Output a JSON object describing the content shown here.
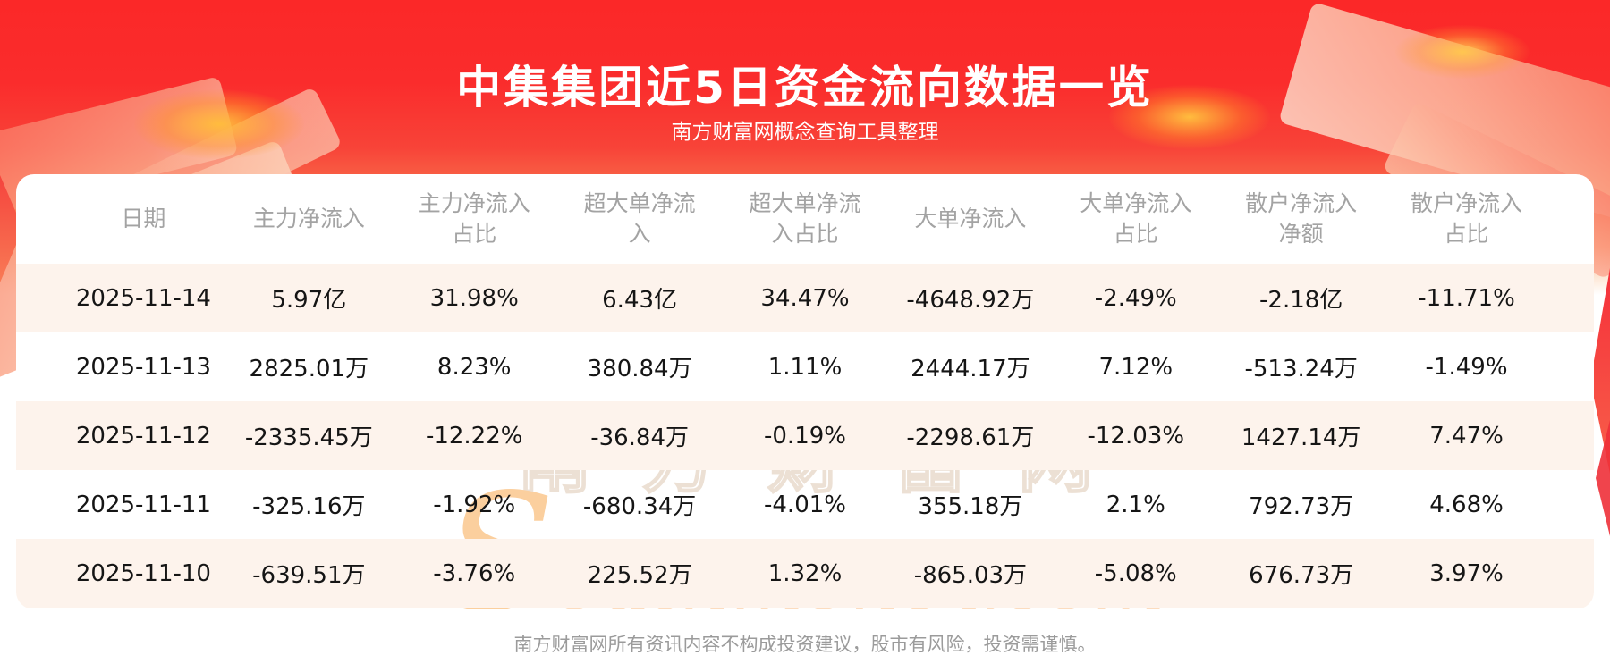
{
  "header": {
    "title": "中集集团近5日资金流向数据一览",
    "subtitle": "南方财富网概念查询工具整理"
  },
  "watermark": {
    "cn": "南方财富网",
    "en": "Southmoney.com"
  },
  "footer": {
    "disclaimer": "南方财富网所有资讯内容不构成投资建议，股市有风险，投资需谨慎。"
  },
  "colors": {
    "banner_red": "#fb2828",
    "banner_fade": "#fbaf82",
    "row_alt_bg": "#fdf3ec",
    "header_text": "#a3a3a3",
    "data_text": "#151515",
    "title_text": "#ffffff",
    "footer_text": "#9b9b9b",
    "gold_glow": "#ffbc3e"
  },
  "chart_data": {
    "type": "table",
    "title": "中集集团近5日资金流向数据一览",
    "columns": [
      "日期",
      "主力净流入",
      "主力净流入占比",
      "超大单净流入",
      "超大单净流入占比",
      "大单净流入",
      "大单净流入占比",
      "散户净流入净额",
      "散户净流入占比"
    ],
    "rows": [
      [
        "2025-11-14",
        "5.97亿",
        "31.98%",
        "6.43亿",
        "34.47%",
        "-4648.92万",
        "-2.49%",
        "-2.18亿",
        "-11.71%"
      ],
      [
        "2025-11-13",
        "2825.01万",
        "8.23%",
        "380.84万",
        "1.11%",
        "2444.17万",
        "7.12%",
        "-513.24万",
        "-1.49%"
      ],
      [
        "2025-11-12",
        "-2335.45万",
        "-12.22%",
        "-36.84万",
        "-0.19%",
        "-2298.61万",
        "-12.03%",
        "1427.14万",
        "7.47%"
      ],
      [
        "2025-11-11",
        "-325.16万",
        "-1.92%",
        "-680.34万",
        "-4.01%",
        "355.18万",
        "2.1%",
        "792.73万",
        "4.68%"
      ],
      [
        "2025-11-10",
        "-639.51万",
        "-3.76%",
        "225.52万",
        "1.32%",
        "-865.03万",
        "-5.08%",
        "676.73万",
        "3.97%"
      ]
    ]
  }
}
